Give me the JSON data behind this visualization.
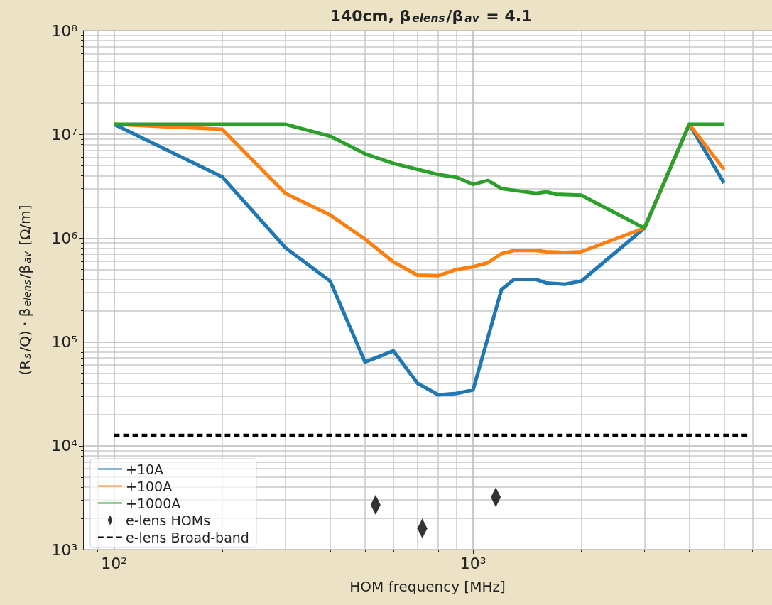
{
  "chart_data": {
    "type": "line",
    "title": "140cm, β$_{elens}$/β$_{av}$ = 4.1",
    "xlabel": "HOM frequency [MHz]",
    "ylabel": "(R$_{s}$/Q) · β$_{elens}$/β$_{av}$ [Ω/m]",
    "log": "xy",
    "grid": true,
    "legend": "bottom left",
    "marker": "none",
    "line_style": "solid",
    "xlim": [
      82,
      6800
    ],
    "xticks": [
      {
        "value": 100,
        "label": "10²"
      },
      {
        "value": 1000,
        "label": "10³"
      }
    ],
    "ylim": [
      1000,
      100000000
    ],
    "yticks": [
      {
        "value": 1000,
        "label": "10³"
      },
      {
        "value": 10000,
        "label": "10⁴"
      },
      {
        "value": 100000,
        "label": "10⁵"
      },
      {
        "value": 1000000,
        "label": "10⁶"
      },
      {
        "value": 10000000,
        "label": "10⁷"
      },
      {
        "value": 100000000,
        "label": "10⁸"
      }
    ],
    "series": [
      {
        "name": "+10A",
        "color": "#1f77b4",
        "x": [
          100,
          200,
          300,
          400,
          500,
          600,
          700,
          800,
          900,
          1000,
          1200,
          1300,
          1500,
          1600,
          1800,
          2000,
          3000,
          4000,
          5000
        ],
        "values": [
          12500000,
          3900000,
          810000,
          385000,
          64000,
          82000,
          40000,
          31000,
          32000,
          34500,
          320000,
          400000,
          400000,
          370000,
          360000,
          385000,
          1250000,
          12500000,
          3400000
        ]
      },
      {
        "name": "+100A",
        "color": "#ff7f0e",
        "x": [
          100,
          200,
          300,
          400,
          500,
          600,
          700,
          800,
          900,
          1000,
          1100,
          1200,
          1300,
          1500,
          1600,
          1800,
          2000,
          3000,
          4000,
          5000
        ],
        "values": [
          12500000,
          11200000,
          2700000,
          1670000,
          980000,
          590000,
          440000,
          435000,
          500000,
          530000,
          580000,
          710000,
          760000,
          760000,
          740000,
          730000,
          740000,
          1250000,
          12500000,
          4600000
        ]
      },
      {
        "name": "+1000A",
        "color": "#2ca02c",
        "x": [
          100,
          200,
          300,
          400,
          500,
          600,
          700,
          800,
          900,
          1000,
          1100,
          1200,
          1500,
          1600,
          1700,
          2000,
          3000,
          4000,
          5000
        ],
        "values": [
          12500000,
          12500000,
          12500000,
          9600000,
          6500000,
          5250000,
          4600000,
          4100000,
          3850000,
          3300000,
          3600000,
          3000000,
          2700000,
          2800000,
          2650000,
          2600000,
          1250000,
          12500000,
          12500000
        ]
      },
      {
        "name": "e-lens HOMs",
        "type": "scatter",
        "marker": "diamond",
        "color": "#000000",
        "x": [
          535,
          722,
          1157
        ],
        "values": [
          2700,
          1600,
          3200
        ]
      },
      {
        "name": "e-lens Broad-band",
        "line_style": "dashed",
        "color": "#000000",
        "x": [
          100,
          5800
        ],
        "values": [
          12600,
          12600
        ]
      }
    ]
  }
}
